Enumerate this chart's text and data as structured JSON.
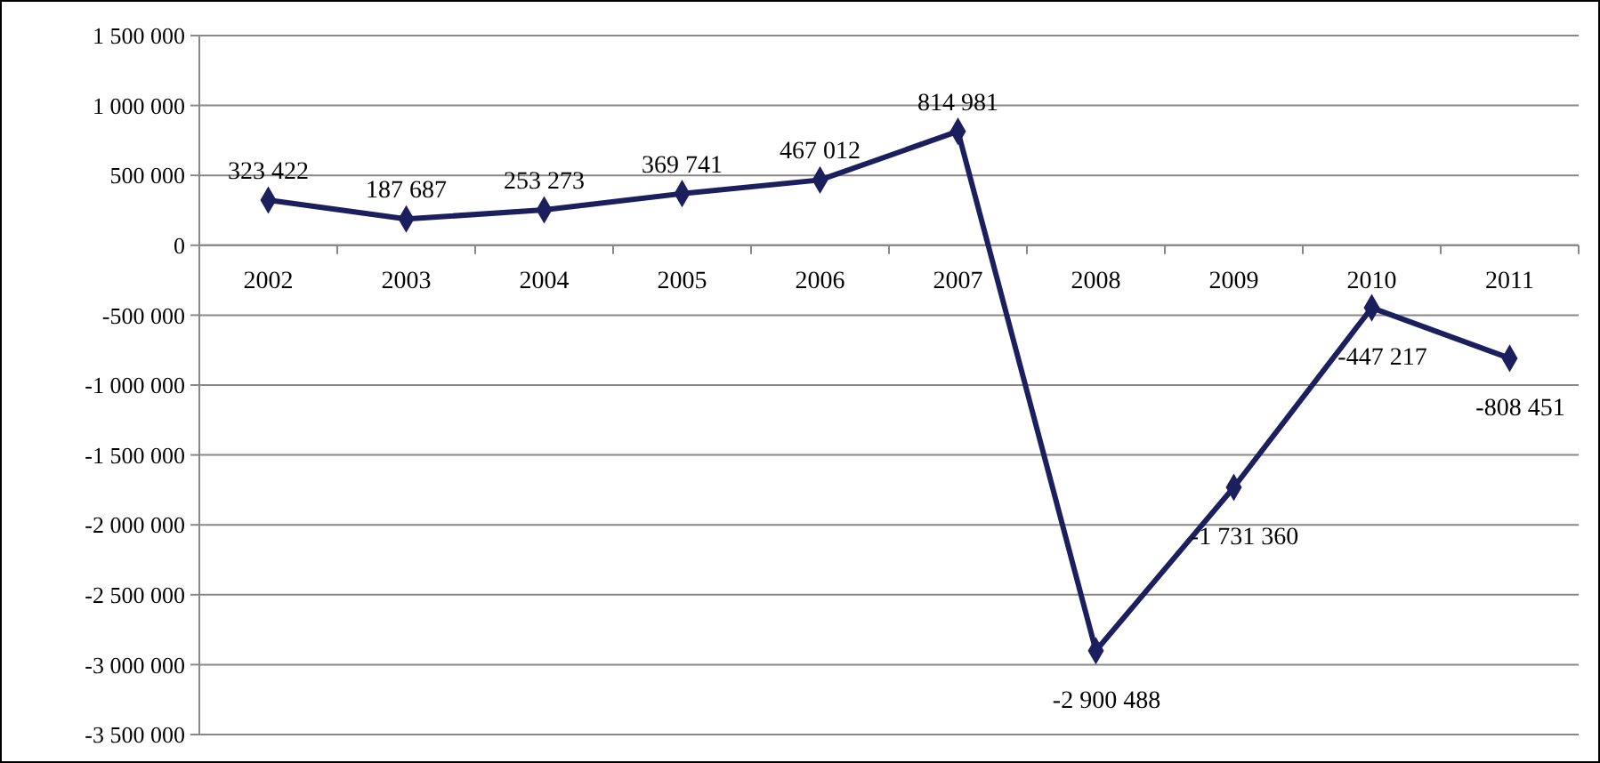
{
  "chart_data": {
    "type": "line",
    "categories": [
      "2002",
      "2003",
      "2004",
      "2005",
      "2006",
      "2007",
      "2008",
      "2009",
      "2010",
      "2011"
    ],
    "series": [
      {
        "color": "#1c1f5e",
        "values": [
          323422,
          187687,
          253273,
          369741,
          467012,
          814981,
          -2900488,
          -1731360,
          -447217,
          -808451
        ],
        "value_labels": [
          "323 422",
          "187 687",
          "253 273",
          "369 741",
          "467 012",
          "814 981",
          "-2 900 488",
          "-1 731 360",
          "-447 217",
          "-808 451"
        ]
      }
    ],
    "ylim": [
      -3500000,
      1500000
    ],
    "yticks": [
      {
        "value": 1500000,
        "label": "1 500 000"
      },
      {
        "value": 1000000,
        "label": "1 000 000"
      },
      {
        "value": 500000,
        "label": "500 000"
      },
      0,
      {
        "value": -500000,
        "label": "-500 000"
      },
      {
        "value": -1000000,
        "label": "-1 000 000"
      },
      {
        "value": -1500000,
        "label": "-1 500 000"
      },
      {
        "value": -2000000,
        "label": "-2 000 000"
      },
      {
        "value": -2500000,
        "label": "-2 500 000"
      },
      {
        "value": -3000000,
        "label": "-3 000 000"
      },
      {
        "value": -3500000,
        "label": "-3 500 000"
      }
    ],
    "grid": "y",
    "marker": "diamond",
    "line_style": "solid"
  }
}
